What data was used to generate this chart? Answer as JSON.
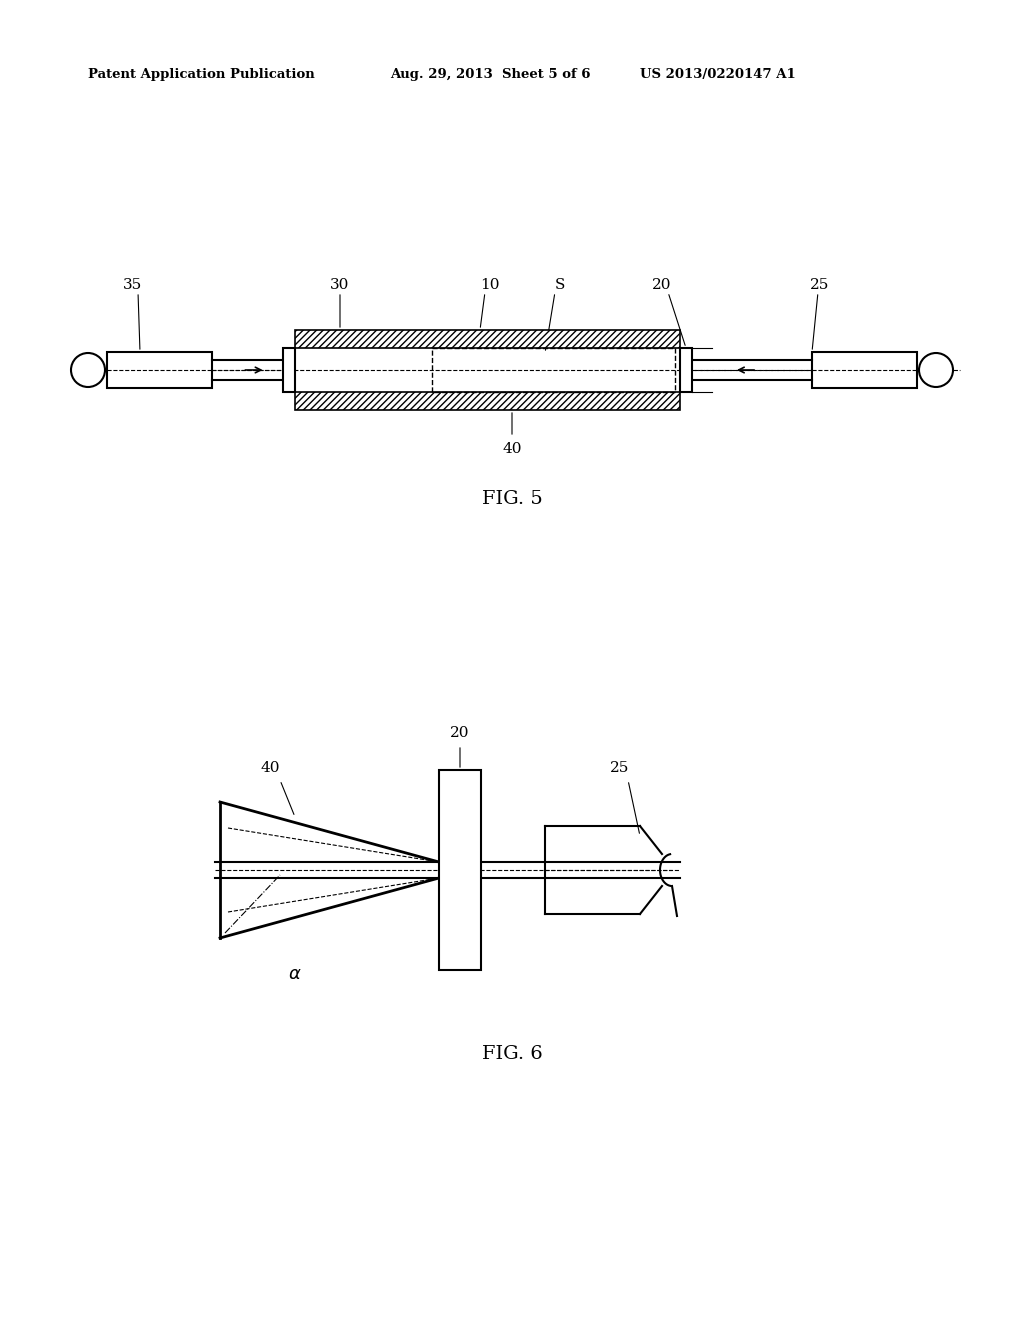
{
  "bg_color": "#ffffff",
  "line_color": "#000000",
  "header_left": "Patent Application Publication",
  "header_mid": "Aug. 29, 2013  Sheet 5 of 6",
  "header_right": "US 2013/0220147 A1",
  "fig5_label": "FIG. 5",
  "fig6_label": "FIG. 6"
}
